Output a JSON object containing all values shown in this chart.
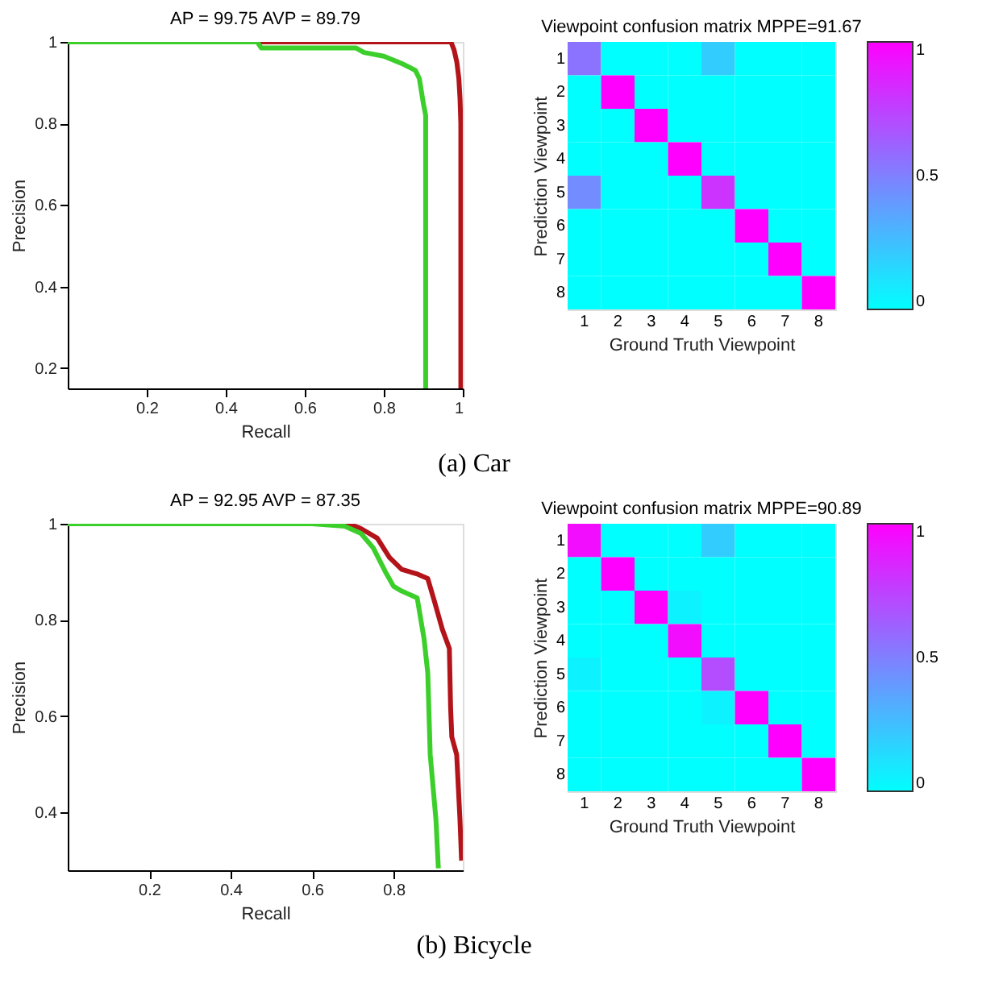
{
  "chart_data": [
    {
      "type": "line",
      "title": "AP = 99.75 AVP = 89.79",
      "xlabel": "Recall",
      "ylabel": "Precision",
      "xlim": [
        0,
        1
      ],
      "ylim": [
        0.15,
        1
      ],
      "xticks": [
        0.2,
        0.4,
        0.6,
        0.8,
        1
      ],
      "yticks": [
        0.2,
        0.4,
        0.6,
        0.8,
        1
      ],
      "grid": false,
      "annotations": [
        "(a) Car"
      ],
      "series": [
        {
          "color": "#b3141a",
          "x": [
            0,
            0.97,
            0.978,
            0.985,
            0.99,
            0.993,
            0.995,
            0.995
          ],
          "values": [
            1,
            1,
            0.98,
            0.95,
            0.91,
            0.86,
            0.8,
            0.15
          ]
        },
        {
          "color": "#3ccf2c",
          "x": [
            0,
            0.48,
            0.49,
            0.73,
            0.75,
            0.8,
            0.85,
            0.88,
            0.89,
            0.9,
            0.906,
            0.906
          ],
          "values": [
            1,
            1,
            0.985,
            0.985,
            0.974,
            0.965,
            0.945,
            0.93,
            0.91,
            0.85,
            0.82,
            0.15
          ]
        }
      ]
    },
    {
      "type": "heatmap",
      "title": "Viewpoint confusion matrix MPPE=91.67",
      "xlabel": "Ground Truth Viewpoint",
      "ylabel": "Prediction Viewpoint",
      "categories": [
        "1",
        "2",
        "3",
        "4",
        "5",
        "6",
        "7",
        "8"
      ],
      "y_categories": [
        "1",
        "2",
        "3",
        "4",
        "5",
        "6",
        "7",
        "8"
      ],
      "clim": [
        0,
        1
      ],
      "cticks": [
        0,
        0.5,
        1
      ],
      "cells": [
        [
          0.55,
          0,
          0,
          0,
          0.2,
          0,
          0,
          0
        ],
        [
          0,
          1,
          0,
          0,
          0,
          0,
          0,
          0
        ],
        [
          0,
          0,
          1,
          0,
          0,
          0,
          0,
          0
        ],
        [
          0,
          0,
          0,
          1,
          0,
          0,
          0,
          0
        ],
        [
          0.45,
          0,
          0,
          0,
          0.8,
          0,
          0,
          0
        ],
        [
          0,
          0,
          0,
          0,
          0,
          1,
          0,
          0
        ],
        [
          0,
          0,
          0,
          0,
          0,
          0,
          1,
          0
        ],
        [
          0,
          0,
          0,
          0,
          0,
          0,
          0,
          1
        ]
      ]
    },
    {
      "type": "line",
      "title": "AP = 92.95 AVP = 87.35",
      "xlabel": "Recall",
      "ylabel": "Precision",
      "xlim": [
        0,
        0.97
      ],
      "ylim": [
        0.28,
        1
      ],
      "xticks": [
        0.2,
        0.4,
        0.6,
        0.8
      ],
      "yticks": [
        0.4,
        0.6,
        0.8,
        1
      ],
      "grid": false,
      "annotations": [
        "(b) Bicycle"
      ],
      "series": [
        {
          "color": "#b3141a",
          "x": [
            0,
            0.69,
            0.72,
            0.76,
            0.79,
            0.82,
            0.86,
            0.884,
            0.9,
            0.92,
            0.937,
            0.94,
            0.943,
            0.955,
            0.963,
            0.967
          ],
          "values": [
            1,
            1,
            0.99,
            0.97,
            0.93,
            0.905,
            0.895,
            0.886,
            0.84,
            0.78,
            0.741,
            0.62,
            0.557,
            0.52,
            0.386,
            0.3
          ]
        },
        {
          "color": "#3ccf2c",
          "x": [
            0,
            0.6,
            0.68,
            0.72,
            0.75,
            0.78,
            0.8,
            0.82,
            0.858,
            0.875,
            0.884,
            0.89,
            0.904,
            0.91
          ],
          "values": [
            1,
            1,
            0.995,
            0.98,
            0.95,
            0.9,
            0.87,
            0.86,
            0.846,
            0.76,
            0.69,
            0.52,
            0.386,
            0.284
          ]
        }
      ]
    },
    {
      "type": "heatmap",
      "title": "Viewpoint confusion matrix MPPE=90.89",
      "xlabel": "Ground Truth Viewpoint",
      "ylabel": "Prediction Viewpoint",
      "categories": [
        "1",
        "2",
        "3",
        "4",
        "5",
        "6",
        "7",
        "8"
      ],
      "y_categories": [
        "1",
        "2",
        "3",
        "4",
        "5",
        "6",
        "7",
        "8"
      ],
      "clim": [
        0,
        1
      ],
      "cticks": [
        0,
        0.5,
        1
      ],
      "cells": [
        [
          0.95,
          0,
          0,
          0,
          0.2,
          0,
          0,
          0
        ],
        [
          0,
          1,
          0,
          0,
          0,
          0,
          0,
          0
        ],
        [
          0,
          0,
          1,
          0.05,
          0,
          0,
          0,
          0
        ],
        [
          0,
          0,
          0,
          0.95,
          0,
          0,
          0,
          0
        ],
        [
          0.05,
          0,
          0,
          0,
          0.7,
          0,
          0,
          0
        ],
        [
          0,
          0,
          0,
          0,
          0.05,
          1,
          0,
          0
        ],
        [
          0,
          0,
          0,
          0,
          0,
          0,
          1,
          0
        ],
        [
          0,
          0,
          0,
          0,
          0,
          0,
          0,
          1
        ]
      ]
    }
  ]
}
